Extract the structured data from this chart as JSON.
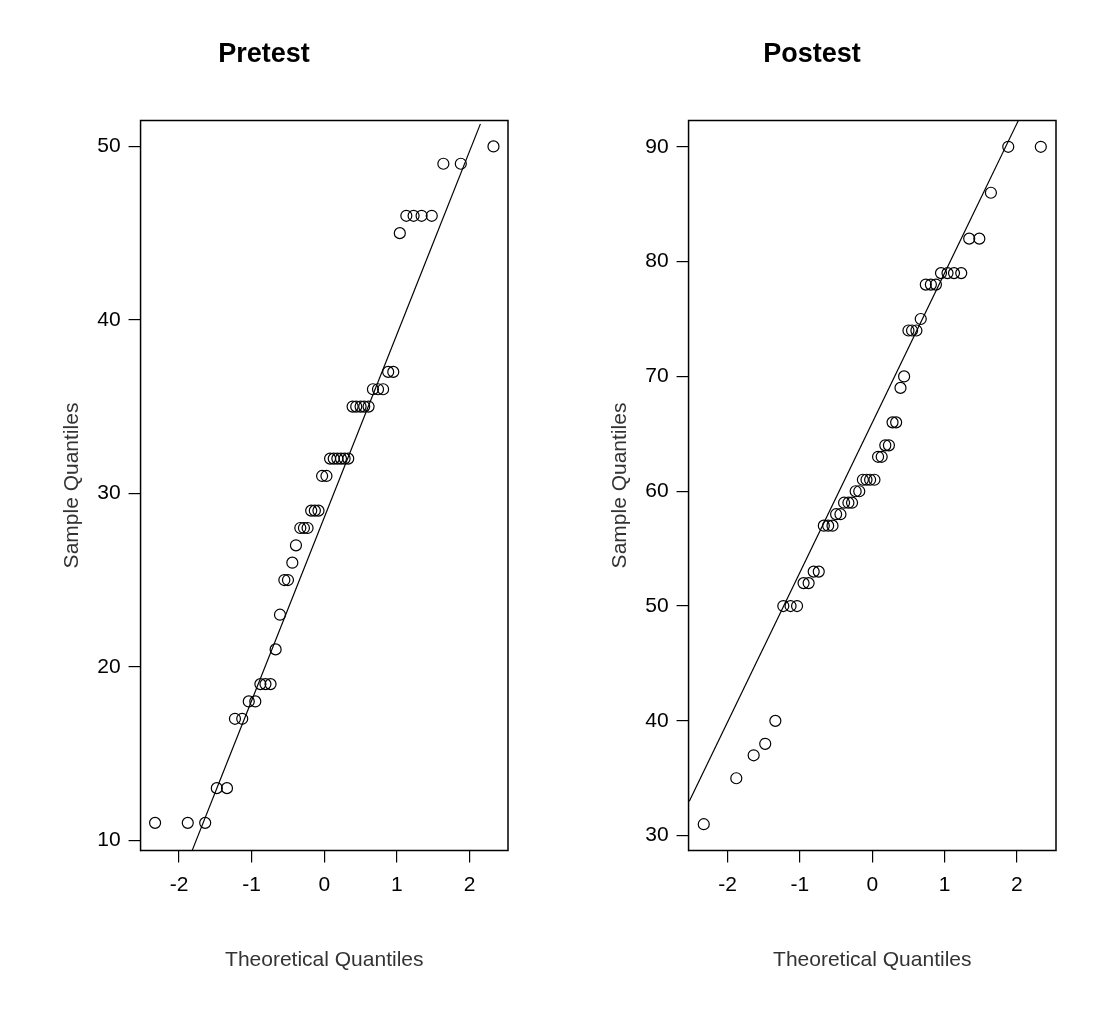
{
  "chart_data": [
    {
      "type": "scatter",
      "title": "Pretest",
      "xlabel": "Theoretical Quantiles",
      "ylabel": "Sample Quantiles",
      "xlim": [
        -2.53,
        2.53
      ],
      "ylim": [
        9.4,
        51.5
      ],
      "xticks": [
        -2,
        -1,
        0,
        1,
        2
      ],
      "yticks": [
        10,
        20,
        30,
        40,
        50
      ],
      "grid": false,
      "legend": false,
      "series": [
        {
          "marker": "circle",
          "color": "#000000",
          "x": [
            -2.33,
            -1.88,
            -1.64,
            -1.48,
            -1.34,
            -1.23,
            -1.13,
            -1.04,
            -0.95,
            -0.88,
            -0.81,
            -0.74,
            -0.67,
            -0.61,
            -0.55,
            -0.5,
            -0.44,
            -0.39,
            -0.33,
            -0.28,
            -0.23,
            -0.18,
            -0.13,
            -0.08,
            -0.03,
            0.03,
            0.08,
            0.13,
            0.18,
            0.23,
            0.28,
            0.33,
            0.39,
            0.44,
            0.5,
            0.55,
            0.61,
            0.67,
            0.74,
            0.81,
            0.88,
            0.95,
            1.04,
            1.13,
            1.23,
            1.34,
            1.48,
            1.64,
            1.88,
            2.33
          ],
          "values": [
            11,
            11,
            11,
            13,
            13,
            17,
            17,
            18,
            18,
            19,
            19,
            19,
            21,
            23,
            25,
            25,
            26,
            27,
            28,
            28,
            28,
            29,
            29,
            29,
            31,
            31,
            32,
            32,
            32,
            32,
            32,
            32,
            35,
            35,
            35,
            35,
            35,
            36,
            36,
            36,
            37,
            37,
            45,
            46,
            46,
            46,
            46,
            49,
            49,
            50
          ]
        },
        {
          "type": "line",
          "color": "#000000",
          "x": [
            -1.82,
            2.15
          ],
          "values": [
            9.4,
            51.3
          ]
        }
      ]
    },
    {
      "type": "scatter",
      "title": "Postest",
      "xlabel": "Theoretical Quantiles",
      "ylabel": "Sample Quantiles",
      "xlim": [
        -2.54,
        2.54
      ],
      "ylim": [
        28.7,
        92.3
      ],
      "xticks": [
        -2,
        -1,
        0,
        1,
        2
      ],
      "yticks": [
        30,
        40,
        50,
        60,
        70,
        80,
        90
      ],
      "grid": false,
      "legend": false,
      "series": [
        {
          "marker": "circle",
          "color": "#000000",
          "x": [
            -2.33,
            -1.88,
            -1.64,
            -1.48,
            -1.34,
            -1.23,
            -1.13,
            -1.04,
            -0.95,
            -0.88,
            -0.81,
            -0.74,
            -0.67,
            -0.61,
            -0.55,
            -0.5,
            -0.44,
            -0.39,
            -0.33,
            -0.28,
            -0.23,
            -0.18,
            -0.13,
            -0.08,
            -0.03,
            0.03,
            0.08,
            0.13,
            0.18,
            0.23,
            0.28,
            0.33,
            0.39,
            0.44,
            0.5,
            0.55,
            0.61,
            0.67,
            0.74,
            0.81,
            0.88,
            0.95,
            1.04,
            1.13,
            1.23,
            1.34,
            1.48,
            1.64,
            1.88,
            2.33
          ],
          "values": [
            31,
            35,
            37,
            38,
            40,
            50,
            50,
            50,
            52,
            52,
            53,
            53,
            57,
            57,
            57,
            58,
            58,
            59,
            59,
            59,
            60,
            60,
            61,
            61,
            61,
            61,
            63,
            63,
            64,
            64,
            66,
            66,
            69,
            70,
            74,
            74,
            74,
            75,
            78,
            78,
            78,
            79,
            79,
            79,
            79,
            82,
            82,
            86,
            90,
            90
          ]
        },
        {
          "type": "line",
          "color": "#000000",
          "x": [
            -2.53,
            2.02
          ],
          "values": [
            33.0,
            92.3
          ]
        }
      ]
    }
  ]
}
